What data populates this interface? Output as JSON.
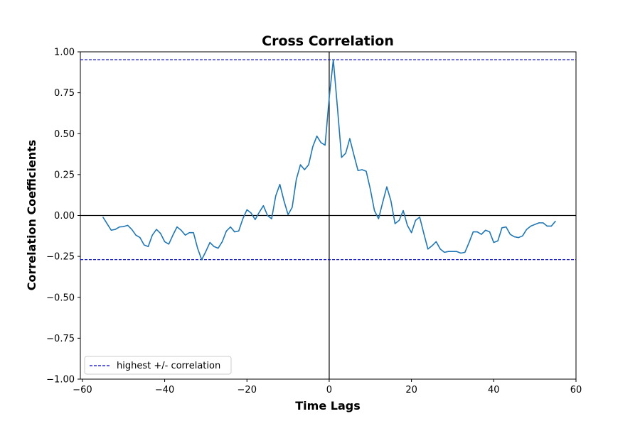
{
  "chart_data": {
    "type": "line",
    "title": "Cross Correlation",
    "xlabel": "Time Lags",
    "ylabel": "Correlation Coefficients",
    "xlim": [
      -60.5,
      60
    ],
    "ylim": [
      -1.0,
      1.0
    ],
    "x_ticks": [
      -60,
      -40,
      -20,
      0,
      20,
      40,
      60
    ],
    "x_tick_labels": [
      "−60",
      "−40",
      "−20",
      "0",
      "20",
      "40",
      "60"
    ],
    "y_ticks": [
      1.0,
      0.75,
      0.5,
      0.25,
      0.0,
      -0.25,
      -0.5,
      -0.75,
      -1.0
    ],
    "y_tick_labels": [
      "1.00",
      "0.75",
      "0.50",
      "0.25",
      "0.00",
      "−0.25",
      "−0.50",
      "−0.75",
      "−1.00"
    ],
    "grid": false,
    "legend": {
      "position": "lower-left",
      "entries": [
        "highest +/- correlation"
      ]
    },
    "reference_lines": {
      "zero_horizontal": 0.0,
      "zero_vertical": 0,
      "upper_threshold": 0.952,
      "lower_threshold": -0.27,
      "threshold_label": "highest +/- correlation"
    },
    "colors": {
      "series": "#1f77b4",
      "threshold": "#0000cc",
      "reference": "#000000"
    },
    "series": [
      {
        "x": [
          -55,
          -54,
          -53,
          -52,
          -51,
          -50,
          -49,
          -48,
          -47,
          -46,
          -45,
          -44,
          -43,
          -42,
          -41,
          -40,
          -39,
          -38,
          -37,
          -36,
          -35,
          -34,
          -33,
          -32,
          -31,
          -30,
          -29,
          -28,
          -27,
          -26,
          -25,
          -24,
          -23,
          -22,
          -21,
          -20,
          -19,
          -18,
          -17,
          -16,
          -15,
          -14,
          -13,
          -12,
          -11,
          -10,
          -9,
          -8,
          -7,
          -6,
          -5,
          -4,
          -3,
          -2,
          -1,
          0,
          1,
          2,
          3,
          4,
          5,
          6,
          7,
          8,
          9,
          10,
          11,
          12,
          13,
          14,
          15,
          16,
          17,
          18,
          19,
          20,
          21,
          22,
          23,
          24,
          25,
          26,
          27,
          28,
          29,
          30,
          31,
          32,
          33,
          34,
          35,
          36,
          37,
          38,
          39,
          40,
          41,
          42,
          43,
          44,
          45,
          46,
          47,
          48,
          49,
          50,
          51,
          52,
          53,
          54,
          55
        ],
        "y": [
          -0.01,
          -0.05,
          -0.09,
          -0.085,
          -0.07,
          -0.068,
          -0.06,
          -0.085,
          -0.12,
          -0.135,
          -0.18,
          -0.19,
          -0.12,
          -0.085,
          -0.11,
          -0.16,
          -0.175,
          -0.12,
          -0.07,
          -0.09,
          -0.12,
          -0.105,
          -0.105,
          -0.2,
          -0.27,
          -0.22,
          -0.165,
          -0.19,
          -0.2,
          -0.16,
          -0.095,
          -0.07,
          -0.1,
          -0.095,
          -0.02,
          0.035,
          0.015,
          -0.025,
          0.02,
          0.06,
          0.0,
          -0.02,
          0.12,
          0.19,
          0.09,
          0.005,
          0.05,
          0.22,
          0.31,
          0.28,
          0.31,
          0.42,
          0.485,
          0.445,
          0.43,
          0.72,
          0.952,
          0.66,
          0.355,
          0.38,
          0.47,
          0.37,
          0.275,
          0.28,
          0.27,
          0.16,
          0.03,
          -0.02,
          0.08,
          0.175,
          0.09,
          -0.05,
          -0.03,
          0.03,
          -0.06,
          -0.105,
          -0.03,
          -0.01,
          -0.11,
          -0.205,
          -0.185,
          -0.16,
          -0.205,
          -0.225,
          -0.22,
          -0.22,
          -0.22,
          -0.23,
          -0.225,
          -0.165,
          -0.1,
          -0.1,
          -0.115,
          -0.09,
          -0.1,
          -0.165,
          -0.155,
          -0.075,
          -0.07,
          -0.115,
          -0.13,
          -0.135,
          -0.125,
          -0.085,
          -0.065,
          -0.055,
          -0.045,
          -0.045,
          -0.065,
          -0.065,
          -0.035
        ]
      }
    ]
  }
}
